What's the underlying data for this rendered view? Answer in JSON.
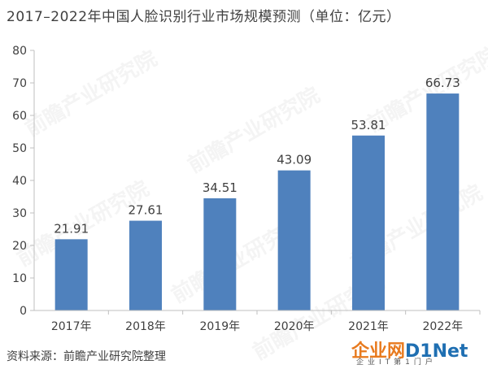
{
  "title": "2017–2022年中国人脸识别行业市场规模预测（单位：亿元）",
  "source": "资料来源：前瞻产业研究院整理",
  "watermark": "前瞻产业研究院",
  "logo": {
    "part1": "企业网",
    "part2": "D1Net",
    "sub": "企业IT第1门户"
  },
  "colors": {
    "bar": "#4f81bd",
    "axis": "#bfbfbf",
    "text": "#404040"
  },
  "chart_data": {
    "type": "bar",
    "title": "2017–2022年中国人脸识别行业市场规模预测（单位：亿元）",
    "categories": [
      "2017年",
      "2018年",
      "2019年",
      "2020年",
      "2021年",
      "2022年"
    ],
    "values": [
      21.91,
      27.61,
      34.51,
      43.09,
      53.81,
      66.73
    ],
    "value_labels": [
      "21.91",
      "27.61",
      "34.51",
      "43.09",
      "53.81",
      "66.73"
    ],
    "ylim": [
      0,
      80
    ],
    "yticks": [
      0,
      10,
      20,
      30,
      40,
      50,
      60,
      70,
      80
    ],
    "grid": false,
    "legend": "none"
  }
}
